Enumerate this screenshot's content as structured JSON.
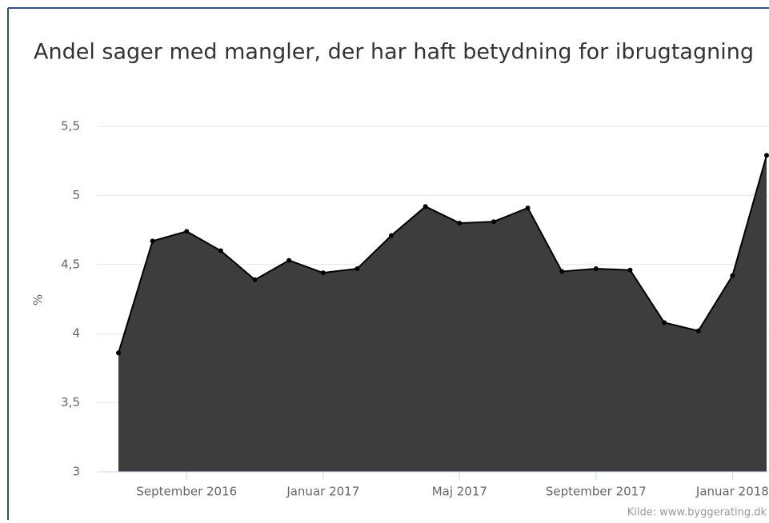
{
  "chart_data": {
    "type": "area",
    "title": "Andel sager med mangler, der har haft betydning for ibrugtagning",
    "y_label": "%",
    "source": "Kilde: www.byggerating.dk",
    "x": [
      "2016-07",
      "2016-08",
      "2016-09",
      "2016-10",
      "2016-11",
      "2016-12",
      "2017-01",
      "2017-02",
      "2017-03",
      "2017-04",
      "2017-05",
      "2017-06",
      "2017-07",
      "2017-08",
      "2017-09",
      "2017-10",
      "2017-11",
      "2017-12",
      "2018-01",
      "2018-02"
    ],
    "series": [
      {
        "color": "#3d3d3d",
        "values": [
          3.86,
          4.67,
          4.74,
          4.6,
          4.39,
          4.53,
          4.44,
          4.47,
          4.71,
          4.92,
          4.8,
          4.81,
          4.91,
          4.45,
          4.47,
          4.46,
          4.08,
          4.02,
          4.42,
          5.29
        ]
      }
    ],
    "xlim": [
      "2016-07",
      "2018-02"
    ],
    "xticks": [
      {
        "value": "2016-09",
        "label": "September 2016"
      },
      {
        "value": "2017-01",
        "label": "Januar 2017"
      },
      {
        "value": "2017-05",
        "label": "Maj 2017"
      },
      {
        "value": "2017-09",
        "label": "September 2017"
      },
      {
        "value": "2018-01",
        "label": "Januar 2018"
      }
    ],
    "ylim": [
      3,
      5.5
    ],
    "yticks": [
      3,
      {
        "value": 3.5,
        "label": "3,5"
      },
      4,
      {
        "value": 4.5,
        "label": "4,5"
      },
      5,
      {
        "value": 5.5,
        "label": "5,5"
      }
    ],
    "grid": true
  }
}
